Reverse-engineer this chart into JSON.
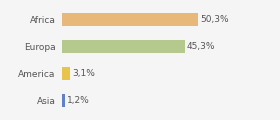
{
  "categories": [
    "Asia",
    "America",
    "Europa",
    "Africa"
  ],
  "values": [
    1.2,
    3.1,
    45.3,
    50.3
  ],
  "labels": [
    "1,2%",
    "3,1%",
    "45,3%",
    "50,3%"
  ],
  "bar_colors": [
    "#6080c8",
    "#e8c44a",
    "#b5c98e",
    "#e8b87a"
  ],
  "xlim": [
    0,
    68
  ],
  "background_color": "#f5f5f5",
  "label_fontsize": 6.5,
  "tick_fontsize": 6.5,
  "bar_height": 0.45
}
